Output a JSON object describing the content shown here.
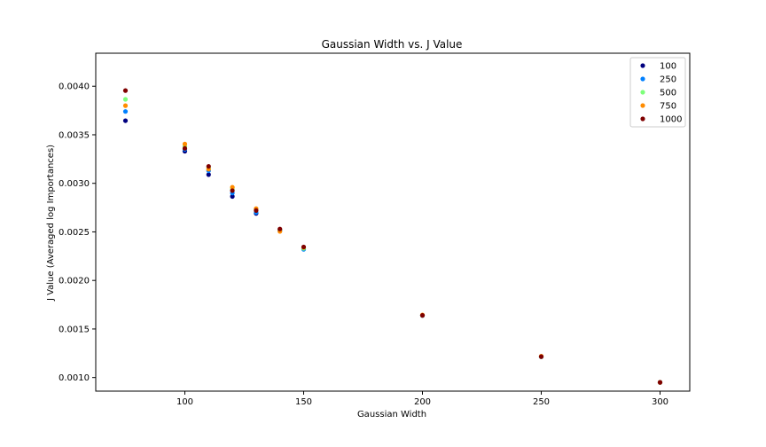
{
  "chart_data": {
    "type": "scatter",
    "title": "Gaussian Width vs. J Value",
    "xlabel": "Gaussian Width",
    "ylabel": "J Value (Averaged log Importances)",
    "xlim": [
      62.5,
      312.5
    ],
    "ylim": [
      0.00086,
      0.00434
    ],
    "xticks": [
      100,
      150,
      200,
      250,
      300
    ],
    "xtick_labels": [
      "100",
      "150",
      "200",
      "250",
      "300"
    ],
    "yticks": [
      0.001,
      0.0015,
      0.002,
      0.0025,
      0.003,
      0.0035,
      0.004
    ],
    "ytick_labels": [
      "0.0010",
      "0.0015",
      "0.0020",
      "0.0025",
      "0.0030",
      "0.0035",
      "0.0040"
    ],
    "grid": false,
    "legend_position": "top-right",
    "series": [
      {
        "name": "100",
        "color": "#00007f",
        "points": [
          [
            75,
            0.003645
          ],
          [
            100,
            0.00333
          ],
          [
            110,
            0.00309
          ],
          [
            120,
            0.002865
          ],
          [
            130,
            0.00269
          ],
          [
            140,
            0.00252
          ],
          [
            150,
            0.00233
          ],
          [
            200,
            0.00164
          ],
          [
            250,
            0.001215
          ],
          [
            300,
            0.00095
          ]
        ]
      },
      {
        "name": "250",
        "color": "#0080ff",
        "points": [
          [
            75,
            0.00374
          ],
          [
            100,
            0.00335
          ],
          [
            110,
            0.00313
          ],
          [
            120,
            0.0029
          ],
          [
            130,
            0.0027
          ],
          [
            140,
            0.00251
          ],
          [
            150,
            0.00232
          ],
          [
            200,
            0.00164
          ],
          [
            250,
            0.001215
          ],
          [
            300,
            0.00095
          ]
        ]
      },
      {
        "name": "500",
        "color": "#7dff7a",
        "points": [
          [
            75,
            0.003865
          ],
          [
            100,
            0.00338
          ],
          [
            110,
            0.00316
          ],
          [
            120,
            0.00294
          ],
          [
            130,
            0.00273
          ],
          [
            140,
            0.00252
          ],
          [
            150,
            0.00233
          ],
          [
            200,
            0.00164
          ],
          [
            250,
            0.001215
          ],
          [
            300,
            0.00095
          ]
        ]
      },
      {
        "name": "750",
        "color": "#ff8c00",
        "points": [
          [
            75,
            0.0038
          ],
          [
            100,
            0.003405
          ],
          [
            110,
            0.003145
          ],
          [
            120,
            0.00296
          ],
          [
            130,
            0.00274
          ],
          [
            140,
            0.002505
          ],
          [
            150,
            0.00234
          ],
          [
            200,
            0.001645
          ],
          [
            250,
            0.00122
          ],
          [
            300,
            0.00095
          ]
        ]
      },
      {
        "name": "1000",
        "color": "#7f0000",
        "points": [
          [
            75,
            0.003955
          ],
          [
            100,
            0.00336
          ],
          [
            110,
            0.003175
          ],
          [
            120,
            0.002925
          ],
          [
            130,
            0.00272
          ],
          [
            140,
            0.00253
          ],
          [
            150,
            0.002345
          ],
          [
            200,
            0.00164
          ],
          [
            250,
            0.001215
          ],
          [
            300,
            0.00095
          ]
        ]
      }
    ]
  }
}
